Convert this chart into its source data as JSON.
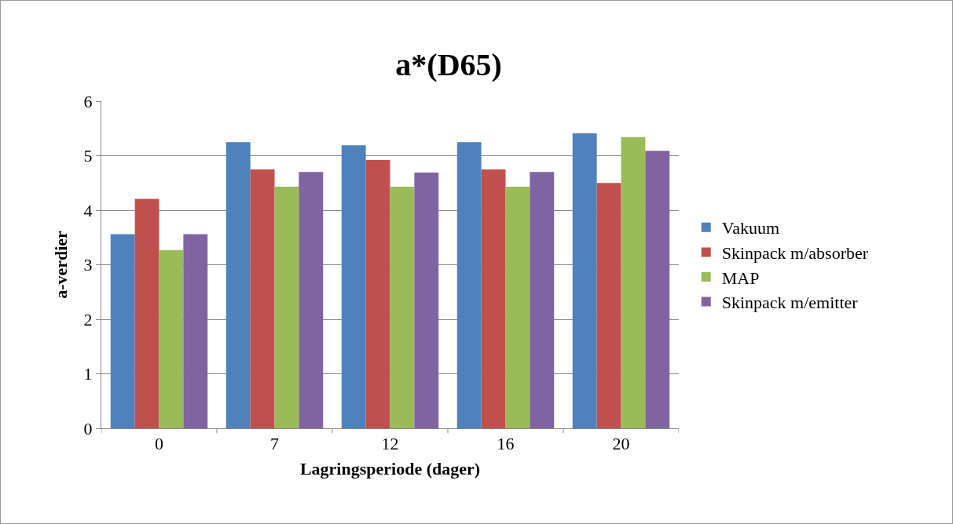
{
  "chart_data": {
    "type": "bar",
    "title": "a*(D65)",
    "xlabel": "Lagringsperiode (dager)",
    "ylabel": "a-verdier",
    "categories": [
      "0",
      "7",
      "12",
      "16",
      "20"
    ],
    "series": [
      {
        "name": "Vakuum",
        "color": "#4f81bd",
        "values": [
          3.56,
          5.25,
          5.19,
          5.25,
          5.41
        ]
      },
      {
        "name": "Skinpack m/absorber",
        "color": "#c0504d",
        "values": [
          4.21,
          4.75,
          4.92,
          4.75,
          4.5
        ]
      },
      {
        "name": "MAP",
        "color": "#9bbb59",
        "values": [
          3.27,
          4.43,
          4.43,
          4.43,
          5.34
        ]
      },
      {
        "name": "Skinpack m/emitter",
        "color": "#8064a2",
        "values": [
          3.56,
          4.7,
          4.69,
          4.7,
          5.09
        ]
      }
    ],
    "ylim": [
      0,
      6
    ],
    "yticks": [
      0,
      1,
      2,
      3,
      4,
      5,
      6
    ],
    "grid": "y",
    "legend": "right"
  }
}
